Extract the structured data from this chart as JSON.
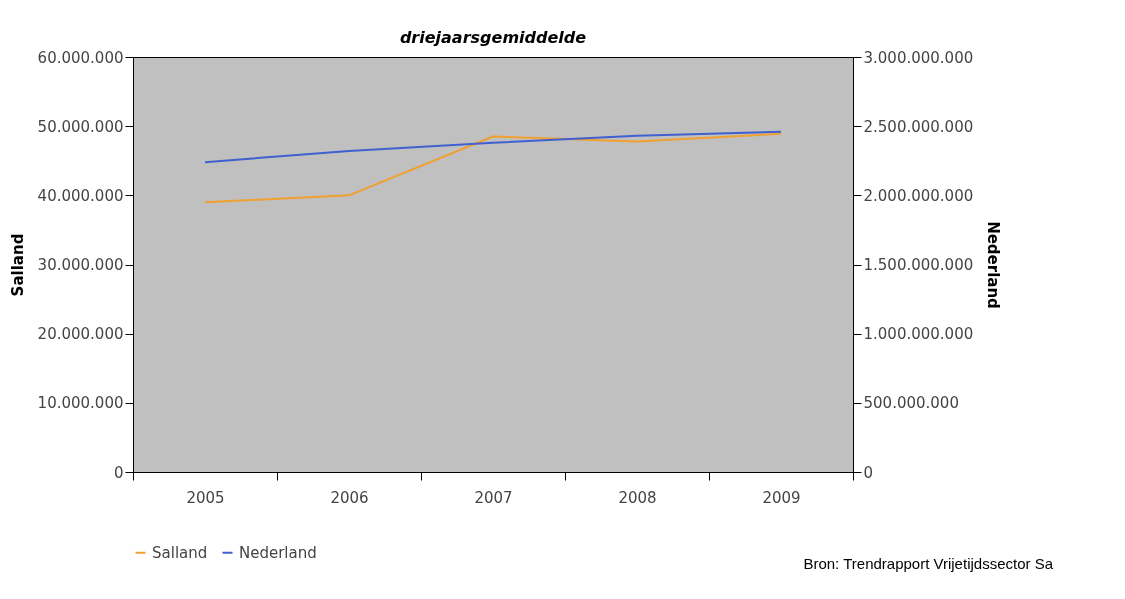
{
  "chart_data": {
    "type": "line",
    "title": "driejaarsgemiddelde",
    "ylabel": "Salland",
    "y2label": "Nederland",
    "categories": [
      "2005",
      "2006",
      "2007",
      "2008",
      "2009"
    ],
    "series": [
      {
        "name": "Salland",
        "color": "#f0a030",
        "values": [
          39000000,
          40000000,
          48500000,
          47800000,
          48900000
        ]
      },
      {
        "name": "Nederland",
        "color": "#4060d0",
        "axis": "y2",
        "values": [
          2240000000,
          2320000000,
          2380000000,
          2430000000,
          2460000000
        ]
      }
    ],
    "ylim": [
      0,
      60000000
    ],
    "yticks": [
      {
        "value": 0,
        "label": "0"
      },
      {
        "value": 10000000,
        "label": "10.000.000"
      },
      {
        "value": 20000000,
        "label": "20.000.000"
      },
      {
        "value": 30000000,
        "label": "30.000.000"
      },
      {
        "value": 40000000,
        "label": "40.000.000"
      },
      {
        "value": 50000000,
        "label": "50.000.000"
      },
      {
        "value": 60000000,
        "label": "60.000.000"
      }
    ],
    "y2lim": [
      0,
      3000000000
    ],
    "y2ticks": [
      {
        "value": 0,
        "label": "0"
      },
      {
        "value": 500000000,
        "label": "500.000.000"
      },
      {
        "value": 1000000000,
        "label": "1.000.000.000"
      },
      {
        "value": 1500000000,
        "label": "1.500.000.000"
      },
      {
        "value": 2000000000,
        "label": "2.000.000.000"
      },
      {
        "value": 2500000000,
        "label": "2.500.000.000"
      },
      {
        "value": 3000000000,
        "label": "3.000.000.000"
      }
    ],
    "grid": false,
    "legend": "bottom",
    "marker": "none",
    "line_style": "solid",
    "annotations": [
      "Bron: Trendrapport Vrijetijdssector Sa"
    ]
  }
}
